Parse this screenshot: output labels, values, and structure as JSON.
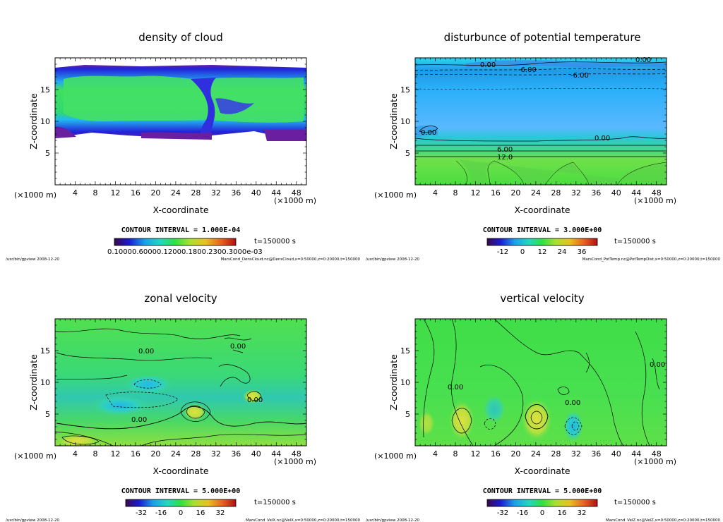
{
  "chart_data": [
    {
      "type": "heatmap",
      "title": "density of cloud",
      "xlabel": "X-coordinate",
      "ylabel": "Z-coordinate",
      "x_unit_label": "(×1000 m)",
      "y_unit_label": "(×1000 m)",
      "xlim": [
        0,
        50
      ],
      "ylim": [
        0,
        20
      ],
      "xticks": [
        4,
        8,
        12,
        16,
        20,
        24,
        28,
        32,
        36,
        40,
        44,
        48
      ],
      "yticks": [
        5,
        10,
        15
      ],
      "contour_interval": "CONTOUR INTERVAL = 1.000E-04",
      "time_label": "t=150000 s",
      "colorbar_label_text": "0.10000.60000.12000.1800.2300.3000e-03",
      "footer_left": "/usr/bin/gpview  2008-12-20",
      "footer_right": "MarsCond_DensCloud.nc@DensCloud,x=0:50000,z=0:20000,t=150000",
      "contour_labels": []
    },
    {
      "type": "heatmap",
      "title": "disturbunce of potential temperature",
      "xlabel": "X-coordinate",
      "ylabel": "Z-coordinate",
      "x_unit_label": "(×1000 m)",
      "y_unit_label": "(×1000 m)",
      "xlim": [
        0,
        50
      ],
      "ylim": [
        0,
        20
      ],
      "xticks": [
        4,
        8,
        12,
        16,
        20,
        24,
        28,
        32,
        36,
        40,
        44,
        48
      ],
      "yticks": [
        5,
        10,
        15
      ],
      "contour_interval": "CONTOUR INTERVAL = 3.000E+00",
      "time_label": "t=150000 s",
      "colorbar_ticks": [
        "-12",
        "0",
        "12",
        "24",
        "36"
      ],
      "footer_left": "/usr/bin/gpview  2008-12-20",
      "footer_right": "MarsCond_PotTemp.nc@PotTempDist,x=0:50000,z=0:20000,t=150000",
      "contour_labels": [
        "0.00",
        "0.00",
        "-6.00",
        "-6.00",
        "0.00",
        "0.00",
        "6.00",
        "12.0"
      ]
    },
    {
      "type": "heatmap",
      "title": "zonal velocity",
      "xlabel": "X-coordinate",
      "ylabel": "Z-coordinate",
      "x_unit_label": "(×1000 m)",
      "y_unit_label": "(×1000 m)",
      "xlim": [
        0,
        50
      ],
      "ylim": [
        0,
        20
      ],
      "xticks": [
        4,
        8,
        12,
        16,
        20,
        24,
        28,
        32,
        36,
        40,
        44,
        48
      ],
      "yticks": [
        5,
        10,
        15
      ],
      "contour_interval": "CONTOUR INTERVAL = 5.000E+00",
      "time_label": "t=150000 s",
      "colorbar_ticks": [
        "-32",
        "-16",
        "0",
        "16",
        "32"
      ],
      "footer_left": "/usr/bin/gpview  2008-12-20",
      "footer_right": "MarsCond_VelX.nc@VelX,x=0:50000,z=0:20000,t=150000",
      "contour_labels": [
        "0.00",
        "0.00",
        "0.00",
        "0.00"
      ]
    },
    {
      "type": "heatmap",
      "title": "vertical velocity",
      "xlabel": "X-coordinate",
      "ylabel": "Z-coordinate",
      "x_unit_label": "(×1000 m)",
      "y_unit_label": "(×1000 m)",
      "xlim": [
        0,
        50
      ],
      "ylim": [
        0,
        20
      ],
      "xticks": [
        4,
        8,
        12,
        16,
        20,
        24,
        28,
        32,
        36,
        40,
        44,
        48
      ],
      "yticks": [
        5,
        10,
        15
      ],
      "contour_interval": "CONTOUR INTERVAL = 5.000E+00",
      "time_label": "t=150000 s",
      "colorbar_ticks": [
        "-32",
        "-16",
        "0",
        "16",
        "32"
      ],
      "footer_left": "/usr/bin/gpview  2008-12-20",
      "footer_right": "MarsCond_VelZ.nc@VelZ,x=0:50000,z=0:20000,t=150000",
      "contour_labels": [
        "0.00",
        "0.00",
        "0.00"
      ]
    }
  ],
  "colors": {
    "plot_green": "#4de04d",
    "cloud_blue": "#2020e0",
    "cloud_purple": "#6a1fa0",
    "light_blue": "#5ab8ff",
    "cyan": "#2fd5ee",
    "yellow": "#d8e64a"
  }
}
